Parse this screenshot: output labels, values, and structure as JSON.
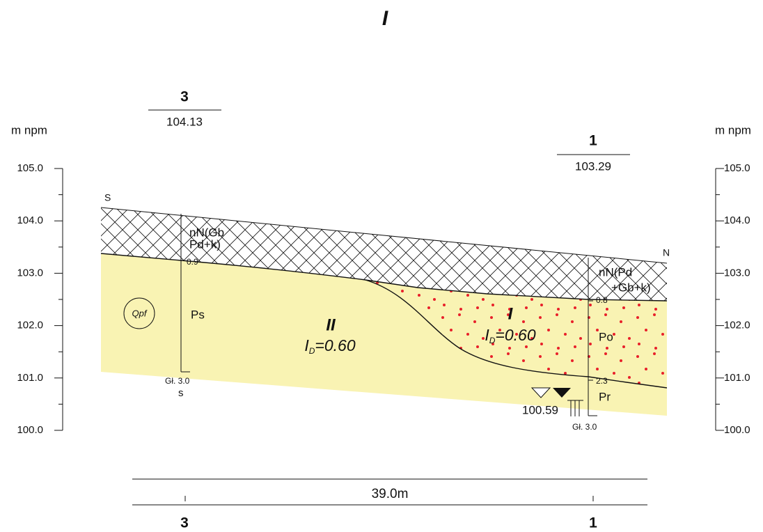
{
  "title": "I",
  "elevation_unit": "m npm",
  "elevation_labels": [
    "105.0",
    "104.0",
    "103.0",
    "102.0",
    "101.0",
    "100.0"
  ],
  "section_ends": {
    "start": "S",
    "end": "N"
  },
  "boreholes": [
    {
      "number": "3",
      "elevation": "104.13",
      "soil_lines": [
        "nN(Gb",
        "Pd+k)"
      ],
      "depths": [
        "0.9"
      ],
      "soils": [
        "Ps"
      ],
      "total_depth": "Gł. 3.0",
      "note": "s"
    },
    {
      "number": "1",
      "elevation": "103.29",
      "soil_lines": [
        "nN(Pd",
        "+Gb+k)"
      ],
      "depths": [
        "0.8",
        "2.3"
      ],
      "soils": [
        "Po",
        "Pr"
      ],
      "total_depth": "Gł. 3.0",
      "water_level": "100.59"
    }
  ],
  "zones": [
    {
      "label": "II",
      "density_symbol": "I",
      "density_subscript": "D",
      "density_value": "=0.60"
    },
    {
      "label": "I",
      "density_symbol": "I",
      "density_subscript": "D",
      "density_value": "=0.60"
    }
  ],
  "stratigraphy": "Qpf",
  "distance": "39.0m"
}
